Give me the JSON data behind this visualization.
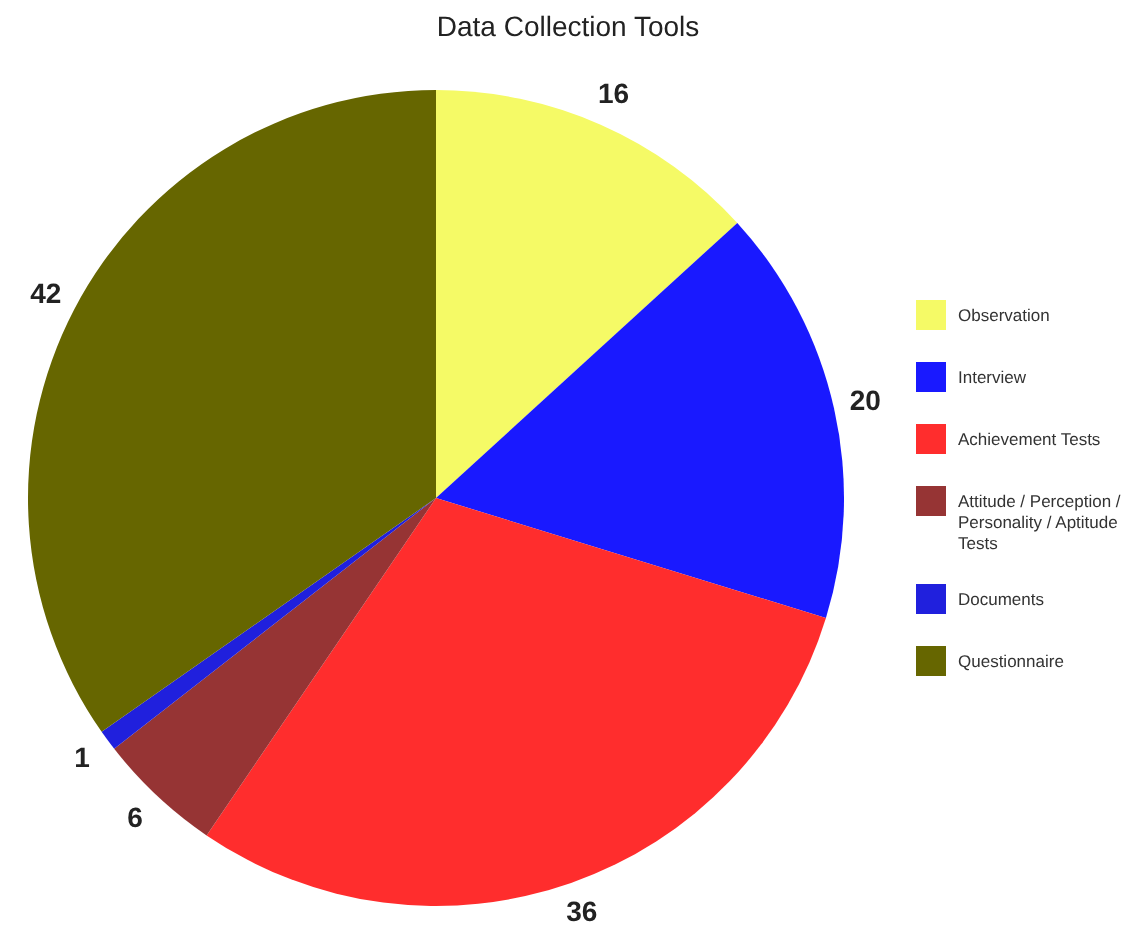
{
  "chart_data": {
    "type": "pie",
    "title": "Data Collection Tools",
    "categories": [
      "Observation",
      "Interview",
      "Achievement Tests",
      "Attitude / Perception / Personality / Aptitude Tests",
      "Documents",
      "Questionnaire"
    ],
    "values": [
      16,
      20,
      36,
      6,
      1,
      42
    ],
    "colors": [
      "#f5fa66",
      "#1919ff",
      "#ff2d2d",
      "#963434",
      "#2020dd",
      "#666600"
    ],
    "data_labels": true,
    "legend": "right"
  }
}
